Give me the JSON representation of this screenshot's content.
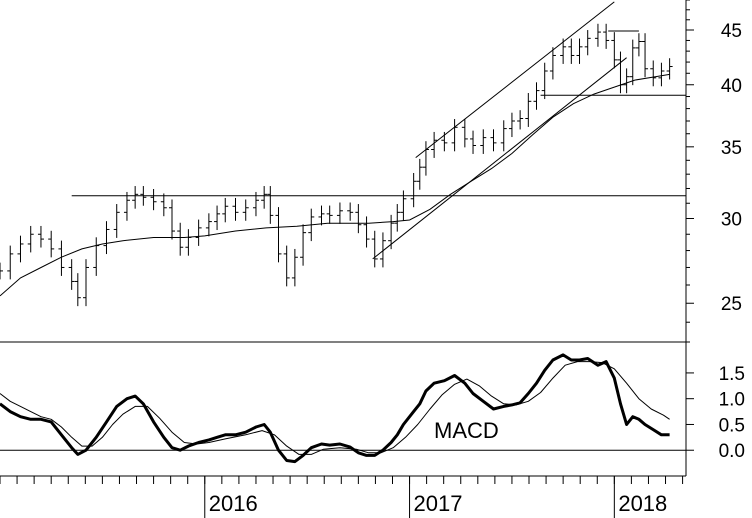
{
  "chart_data": [
    {
      "type": "bar",
      "style": "ohlc",
      "y_scale": "log",
      "ylim": [
        23.0,
        48.0
      ],
      "y_ticks": [
        25,
        30,
        35,
        40,
        45
      ],
      "grid": false,
      "x_labels": [
        "2016",
        "2017",
        "2018"
      ],
      "x_label_dates": [
        2016.0,
        2017.0,
        2018.0
      ],
      "xlim": [
        2015.0,
        2018.35
      ],
      "series": [
        {
          "style": "ohlc",
          "points": [
            [
              2015.0,
              26.8
            ],
            [
              2015.05,
              27.8
            ],
            [
              2015.1,
              28.4
            ],
            [
              2015.15,
              29.0
            ],
            [
              2015.2,
              28.7
            ],
            [
              2015.25,
              28.1
            ],
            [
              2015.3,
              27.0
            ],
            [
              2015.35,
              26.2
            ],
            [
              2015.38,
              25.3
            ],
            [
              2015.42,
              27.0
            ],
            [
              2015.47,
              28.3
            ],
            [
              2015.52,
              29.3
            ],
            [
              2015.57,
              30.4
            ],
            [
              2015.62,
              31.2
            ],
            [
              2015.66,
              31.6
            ],
            [
              2015.7,
              31.4
            ],
            [
              2015.75,
              31.1
            ],
            [
              2015.8,
              30.7
            ],
            [
              2015.84,
              29.2
            ],
            [
              2015.88,
              28.2
            ],
            [
              2015.92,
              28.8
            ],
            [
              2015.97,
              29.4
            ],
            [
              2016.02,
              29.8
            ],
            [
              2016.06,
              30.3
            ],
            [
              2016.1,
              30.8
            ],
            [
              2016.15,
              30.4
            ],
            [
              2016.2,
              30.7
            ],
            [
              2016.25,
              31.2
            ],
            [
              2016.29,
              31.6
            ],
            [
              2016.32,
              30.2
            ],
            [
              2016.36,
              27.8
            ],
            [
              2016.4,
              26.4
            ],
            [
              2016.44,
              27.6
            ],
            [
              2016.48,
              29.1
            ],
            [
              2016.52,
              30.1
            ],
            [
              2016.57,
              30.3
            ],
            [
              2016.61,
              30.2
            ],
            [
              2016.66,
              30.5
            ],
            [
              2016.71,
              30.4
            ],
            [
              2016.75,
              29.6
            ],
            [
              2016.79,
              28.7
            ],
            [
              2016.83,
              27.5
            ],
            [
              2016.87,
              28.6
            ],
            [
              2016.91,
              29.7
            ],
            [
              2016.94,
              30.4
            ],
            [
              2016.97,
              31.3
            ],
            [
              2017.02,
              32.5
            ],
            [
              2017.05,
              33.5
            ],
            [
              2017.08,
              34.8
            ],
            [
              2017.12,
              35.5
            ],
            [
              2017.17,
              35.3
            ],
            [
              2017.22,
              36.5
            ],
            [
              2017.27,
              35.6
            ],
            [
              2017.31,
              35.1
            ],
            [
              2017.36,
              35.7
            ],
            [
              2017.41,
              35.3
            ],
            [
              2017.46,
              36.4
            ],
            [
              2017.5,
              37.0
            ],
            [
              2017.54,
              37.2
            ],
            [
              2017.58,
              38.6
            ],
            [
              2017.62,
              39.5
            ],
            [
              2017.66,
              41.2
            ],
            [
              2017.7,
              42.6
            ],
            [
              2017.75,
              43.4
            ],
            [
              2017.79,
              42.6
            ],
            [
              2017.83,
              43.4
            ],
            [
              2017.87,
              44.2
            ],
            [
              2017.92,
              44.8
            ],
            [
              2017.96,
              44.0
            ],
            [
              2018.0,
              42.2
            ],
            [
              2018.03,
              40.0
            ],
            [
              2018.06,
              40.7
            ],
            [
              2018.09,
              43.3
            ],
            [
              2018.12,
              43.9
            ],
            [
              2018.15,
              41.4
            ],
            [
              2018.19,
              40.6
            ],
            [
              2018.23,
              41.2
            ],
            [
              2018.27,
              41.6
            ]
          ]
        },
        {
          "style": "moving-average",
          "points": [
            [
              2015.0,
              25.4
            ],
            [
              2015.1,
              26.4
            ],
            [
              2015.2,
              27.0
            ],
            [
              2015.3,
              27.6
            ],
            [
              2015.4,
              28.1
            ],
            [
              2015.5,
              28.4
            ],
            [
              2015.6,
              28.6
            ],
            [
              2015.75,
              28.8
            ],
            [
              2015.9,
              28.8
            ],
            [
              2016.0,
              28.9
            ],
            [
              2016.15,
              29.2
            ],
            [
              2016.3,
              29.4
            ],
            [
              2016.45,
              29.5
            ],
            [
              2016.6,
              29.7
            ],
            [
              2016.8,
              29.7
            ],
            [
              2016.92,
              29.8
            ],
            [
              2017.0,
              29.9
            ],
            [
              2017.1,
              30.6
            ],
            [
              2017.2,
              31.6
            ],
            [
              2017.3,
              32.5
            ],
            [
              2017.4,
              33.4
            ],
            [
              2017.5,
              34.5
            ],
            [
              2017.6,
              35.9
            ],
            [
              2017.7,
              37.3
            ],
            [
              2017.8,
              38.4
            ],
            [
              2017.9,
              39.2
            ],
            [
              2018.0,
              39.8
            ],
            [
              2018.1,
              40.4
            ],
            [
              2018.2,
              40.7
            ],
            [
              2018.27,
              40.9
            ]
          ]
        },
        {
          "style": "trendline",
          "points": [
            [
              2016.82,
              27.5
            ],
            [
              2018.06,
              42.4
            ]
          ]
        },
        {
          "style": "trendline",
          "points": [
            [
              2017.03,
              34.2
            ],
            [
              2018.0,
              47.8
            ]
          ]
        },
        {
          "style": "horizontal-line",
          "points": [
            [
              2015.35,
              31.5
            ],
            [
              2018.35,
              31.5
            ]
          ]
        },
        {
          "style": "horizontal-line",
          "points": [
            [
              2017.64,
              39.1
            ],
            [
              2018.35,
              39.1
            ]
          ]
        },
        {
          "style": "horizontal-line",
          "points": [
            [
              2017.97,
              44.9
            ],
            [
              2018.12,
              44.9
            ]
          ]
        }
      ]
    },
    {
      "type": "line",
      "ylim": [
        -0.5,
        2.1
      ],
      "y_ticks": [
        0.0,
        0.5,
        1.0,
        1.5
      ],
      "y_tick_labels": [
        "0.0",
        "0.5",
        "1.0",
        "1.5"
      ],
      "annotation": "MACD",
      "grid": false,
      "series": [
        {
          "style": "macd",
          "points": [
            [
              2015.0,
              0.9
            ],
            [
              2015.05,
              0.75
            ],
            [
              2015.1,
              0.65
            ],
            [
              2015.15,
              0.6
            ],
            [
              2015.2,
              0.6
            ],
            [
              2015.25,
              0.55
            ],
            [
              2015.3,
              0.3
            ],
            [
              2015.35,
              0.05
            ],
            [
              2015.38,
              -0.08
            ],
            [
              2015.42,
              0.0
            ],
            [
              2015.47,
              0.25
            ],
            [
              2015.52,
              0.55
            ],
            [
              2015.57,
              0.85
            ],
            [
              2015.62,
              1.0
            ],
            [
              2015.66,
              1.05
            ],
            [
              2015.7,
              0.9
            ],
            [
              2015.75,
              0.55
            ],
            [
              2015.8,
              0.25
            ],
            [
              2015.84,
              0.05
            ],
            [
              2015.88,
              0.0
            ],
            [
              2015.92,
              0.08
            ],
            [
              2015.97,
              0.15
            ],
            [
              2016.02,
              0.2
            ],
            [
              2016.06,
              0.25
            ],
            [
              2016.1,
              0.3
            ],
            [
              2016.15,
              0.3
            ],
            [
              2016.2,
              0.35
            ],
            [
              2016.25,
              0.45
            ],
            [
              2016.29,
              0.5
            ],
            [
              2016.32,
              0.35
            ],
            [
              2016.36,
              0.0
            ],
            [
              2016.4,
              -0.2
            ],
            [
              2016.44,
              -0.22
            ],
            [
              2016.48,
              -0.1
            ],
            [
              2016.52,
              0.05
            ],
            [
              2016.57,
              0.12
            ],
            [
              2016.61,
              0.1
            ],
            [
              2016.66,
              0.12
            ],
            [
              2016.71,
              0.06
            ],
            [
              2016.75,
              -0.05
            ],
            [
              2016.79,
              -0.1
            ],
            [
              2016.83,
              -0.1
            ],
            [
              2016.87,
              0.0
            ],
            [
              2016.91,
              0.15
            ],
            [
              2016.94,
              0.3
            ],
            [
              2016.97,
              0.5
            ],
            [
              2017.02,
              0.75
            ],
            [
              2017.05,
              0.9
            ],
            [
              2017.08,
              1.15
            ],
            [
              2017.12,
              1.3
            ],
            [
              2017.17,
              1.35
            ],
            [
              2017.22,
              1.45
            ],
            [
              2017.27,
              1.3
            ],
            [
              2017.31,
              1.1
            ],
            [
              2017.36,
              0.95
            ],
            [
              2017.41,
              0.8
            ],
            [
              2017.46,
              0.85
            ],
            [
              2017.5,
              0.88
            ],
            [
              2017.54,
              0.92
            ],
            [
              2017.58,
              1.1
            ],
            [
              2017.62,
              1.3
            ],
            [
              2017.66,
              1.55
            ],
            [
              2017.7,
              1.75
            ],
            [
              2017.75,
              1.85
            ],
            [
              2017.79,
              1.75
            ],
            [
              2017.83,
              1.75
            ],
            [
              2017.87,
              1.78
            ],
            [
              2017.92,
              1.65
            ],
            [
              2017.96,
              1.72
            ],
            [
              2018.0,
              1.4
            ],
            [
              2018.03,
              0.9
            ],
            [
              2018.06,
              0.5
            ],
            [
              2018.09,
              0.65
            ],
            [
              2018.12,
              0.6
            ],
            [
              2018.15,
              0.5
            ],
            [
              2018.19,
              0.4
            ],
            [
              2018.23,
              0.3
            ],
            [
              2018.27,
              0.3
            ]
          ]
        },
        {
          "style": "signal",
          "points": [
            [
              2015.0,
              1.1
            ],
            [
              2015.05,
              0.95
            ],
            [
              2015.1,
              0.85
            ],
            [
              2015.15,
              0.75
            ],
            [
              2015.2,
              0.65
            ],
            [
              2015.25,
              0.6
            ],
            [
              2015.3,
              0.45
            ],
            [
              2015.35,
              0.25
            ],
            [
              2015.4,
              0.08
            ],
            [
              2015.45,
              0.08
            ],
            [
              2015.5,
              0.25
            ],
            [
              2015.55,
              0.5
            ],
            [
              2015.6,
              0.7
            ],
            [
              2015.66,
              0.85
            ],
            [
              2015.72,
              0.85
            ],
            [
              2015.78,
              0.62
            ],
            [
              2015.84,
              0.35
            ],
            [
              2015.9,
              0.15
            ],
            [
              2015.96,
              0.12
            ],
            [
              2016.02,
              0.15
            ],
            [
              2016.1,
              0.22
            ],
            [
              2016.2,
              0.3
            ],
            [
              2016.28,
              0.38
            ],
            [
              2016.34,
              0.3
            ],
            [
              2016.4,
              0.08
            ],
            [
              2016.46,
              -0.08
            ],
            [
              2016.52,
              -0.08
            ],
            [
              2016.58,
              0.02
            ],
            [
              2016.66,
              0.05
            ],
            [
              2016.74,
              0.02
            ],
            [
              2016.8,
              -0.05
            ],
            [
              2016.86,
              -0.05
            ],
            [
              2016.92,
              0.05
            ],
            [
              2016.98,
              0.25
            ],
            [
              2017.04,
              0.5
            ],
            [
              2017.1,
              0.8
            ],
            [
              2017.16,
              1.08
            ],
            [
              2017.22,
              1.28
            ],
            [
              2017.28,
              1.38
            ],
            [
              2017.34,
              1.25
            ],
            [
              2017.4,
              1.05
            ],
            [
              2017.46,
              0.9
            ],
            [
              2017.52,
              0.88
            ],
            [
              2017.58,
              0.95
            ],
            [
              2017.64,
              1.12
            ],
            [
              2017.7,
              1.4
            ],
            [
              2017.76,
              1.65
            ],
            [
              2017.82,
              1.72
            ],
            [
              2017.88,
              1.72
            ],
            [
              2017.94,
              1.7
            ],
            [
              2018.0,
              1.58
            ],
            [
              2018.06,
              1.3
            ],
            [
              2018.12,
              1.0
            ],
            [
              2018.18,
              0.8
            ],
            [
              2018.24,
              0.68
            ],
            [
              2018.27,
              0.6
            ]
          ]
        }
      ]
    }
  ]
}
